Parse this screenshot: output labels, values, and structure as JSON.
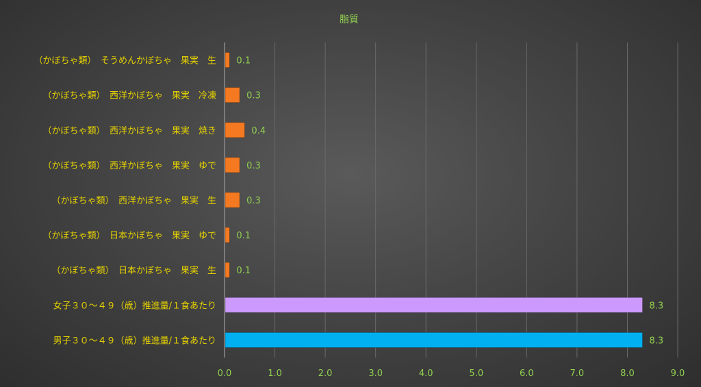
{
  "chart_data": {
    "type": "bar",
    "orientation": "horizontal",
    "title": "脂質",
    "xlabel": "",
    "ylabel": "",
    "xlim": [
      0,
      9
    ],
    "xticks": [
      "0.0",
      "1.0",
      "2.0",
      "3.0",
      "4.0",
      "5.0",
      "6.0",
      "7.0",
      "8.0",
      "9.0"
    ],
    "grid": true,
    "categories": [
      "（かぼちゃ類）　そうめんかぼちゃ　果実　生",
      "（かぼちゃ類）　西洋かぼちゃ　果実　冷凍",
      "（かぼちゃ類）　西洋かぼちゃ　果実　焼き",
      "（かぼちゃ類）　西洋かぼちゃ　果実　ゆで",
      "（かぼちゃ類）　西洋かぼちゃ　果実　生",
      "（かぼちゃ類）　日本かぼちゃ　果実　ゆで",
      "（かぼちゃ類）　日本かぼちゃ　果実　生",
      "女子３０～４９（歳）推進量/１食あたり",
      "男子３０～４９（歳）推進量/１食あたり"
    ],
    "values": [
      0.1,
      0.3,
      0.4,
      0.3,
      0.3,
      0.1,
      0.1,
      8.3,
      8.3
    ],
    "value_labels": [
      "0.1",
      "0.3",
      "0.4",
      "0.3",
      "0.3",
      "0.1",
      "0.1",
      "8.3",
      "8.3"
    ],
    "bar_colors": [
      "#f47920",
      "#f47920",
      "#f47920",
      "#f47920",
      "#f47920",
      "#f47920",
      "#f47920",
      "#cc99ff",
      "#00b0f0"
    ]
  },
  "colors": {
    "category_label": "#e6d200",
    "value_label": "#92d050",
    "tick_label": "#92d050",
    "title": "#92d050",
    "gridline": "#6a6a6a",
    "axis": "#8a8a8a"
  }
}
